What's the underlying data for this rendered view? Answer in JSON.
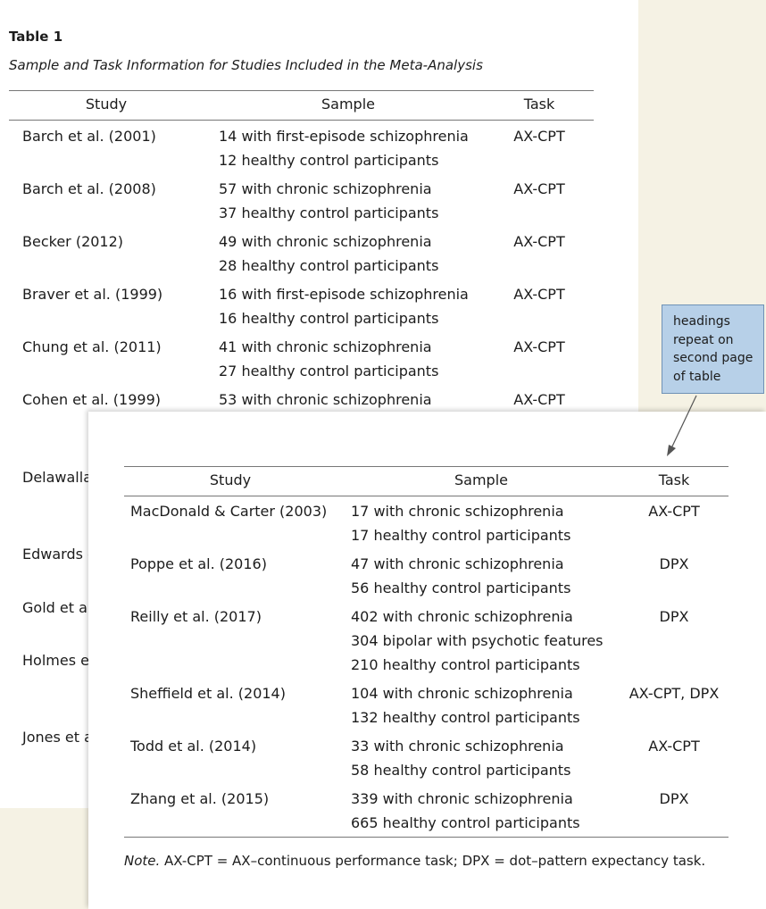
{
  "page1": {
    "table_label": "Table 1",
    "table_title": "Sample and Task Information for Studies Included in the Meta-Analysis",
    "headers": {
      "study": "Study",
      "sample": "Sample",
      "task": "Task"
    },
    "rows": [
      {
        "study": "Barch et al. (2001)",
        "sample": [
          "14 with first-episode schizophrenia",
          "12 healthy control participants"
        ],
        "task": "AX-CPT"
      },
      {
        "study": "Barch et al. (2008)",
        "sample": [
          "57 with chronic schizophrenia",
          "37 healthy control participants"
        ],
        "task": "AX-CPT"
      },
      {
        "study": "Becker (2012)",
        "sample": [
          "49 with chronic schizophrenia",
          "28 healthy control participants"
        ],
        "task": "AX-CPT"
      },
      {
        "study": "Braver et al. (1999)",
        "sample": [
          "16 with first-episode schizophrenia",
          "16 healthy control participants"
        ],
        "task": "AX-CPT"
      },
      {
        "study": "Chung et al. (2011)",
        "sample": [
          "41 with chronic schizophrenia",
          "27 healthy control participants"
        ],
        "task": "AX-CPT"
      },
      {
        "study": "Cohen et al. (1999)",
        "sample": [
          "53 with chronic schizophrenia"
        ],
        "task": "AX-CPT"
      }
    ],
    "partial_rows": [
      "Delawalla",
      "Edwards e",
      "Gold et al.",
      "Holmes et",
      "Jones et al"
    ]
  },
  "callout": {
    "lines": [
      "headings",
      "repeat on",
      "second page",
      "of table"
    ],
    "fill": "#b7d0e8",
    "border": "#6f92b6"
  },
  "page2": {
    "headers": {
      "study": "Study",
      "sample": "Sample",
      "task": "Task"
    },
    "rows": [
      {
        "study": "MacDonald & Carter (2003)",
        "sample": [
          "17 with chronic schizophrenia",
          "17 healthy control participants"
        ],
        "task": "AX-CPT"
      },
      {
        "study": "Poppe et al. (2016)",
        "sample": [
          "47 with chronic schizophrenia",
          "56 healthy control participants"
        ],
        "task": "DPX"
      },
      {
        "study": "Reilly et al. (2017)",
        "sample": [
          "402 with chronic schizophrenia",
          "304 bipolar with psychotic features",
          "210 healthy control participants"
        ],
        "task": "DPX"
      },
      {
        "study": "Sheffield et al. (2014)",
        "sample": [
          "104 with chronic schizophrenia",
          "132 healthy control participants"
        ],
        "task": "AX-CPT, DPX"
      },
      {
        "study": "Todd et al. (2014)",
        "sample": [
          "33 with chronic schizophrenia",
          "58 healthy control participants"
        ],
        "task": "AX-CPT"
      },
      {
        "study": "Zhang et al. (2015)",
        "sample": [
          "339 with chronic schizophrenia",
          "665 healthy control participants"
        ],
        "task": "DPX"
      }
    ],
    "note": {
      "label": "Note.",
      "text": " AX-CPT = AX–continuous performance task; DPX = dot–pattern expectancy task."
    }
  }
}
